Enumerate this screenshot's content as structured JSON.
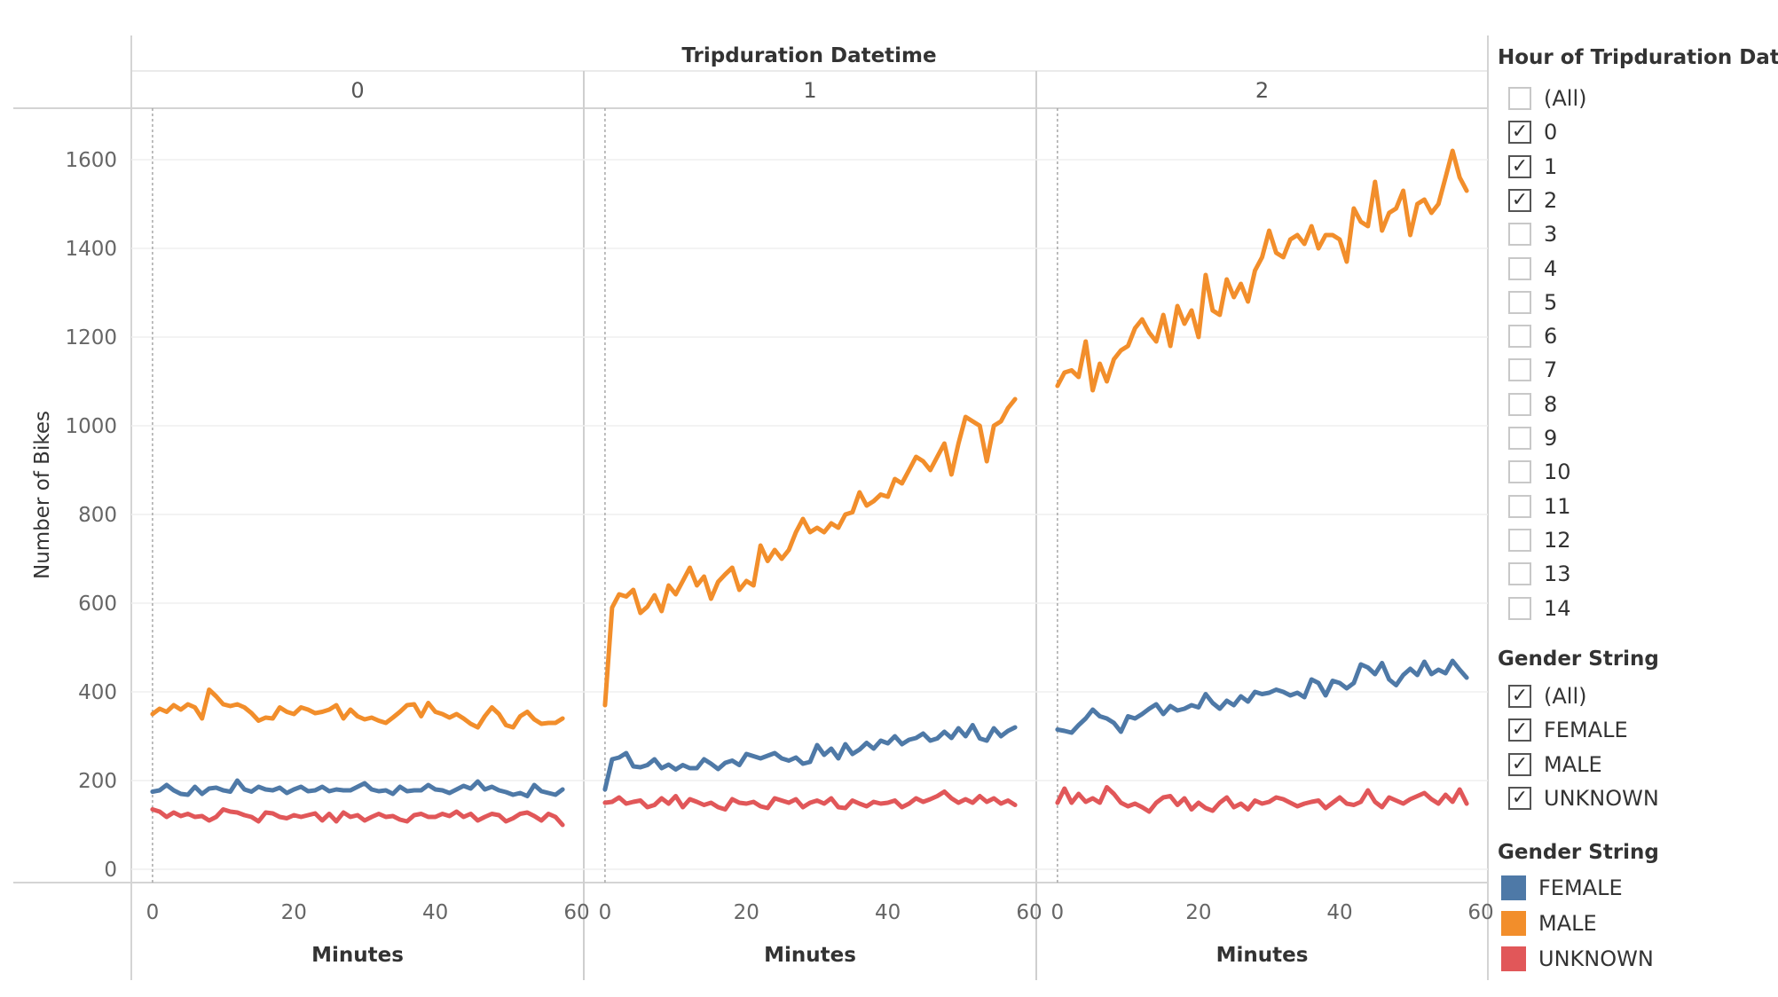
{
  "chart_data": {
    "type": "line",
    "title": "Tripduration Datetime",
    "xlabel": "Minutes",
    "ylabel": "Number of Bikes",
    "ylim": [
      0,
      1700
    ],
    "yticks": [
      0,
      200,
      400,
      600,
      800,
      1000,
      1200,
      1400,
      1600
    ],
    "xlim": [
      -3,
      61
    ],
    "xticks": [
      0,
      20,
      40,
      60
    ],
    "panels": [
      {
        "header": "0",
        "series": [
          {
            "name": "FEMALE",
            "color": "#4e79a7",
            "values": [
              175,
              178,
              190,
              178,
              170,
              168,
              186,
              170,
              182,
              184,
              178,
              175,
              200,
              180,
              175,
              186,
              180,
              178,
              184,
              172,
              180,
              186,
              176,
              178,
              186,
              176,
              180,
              178,
              178,
              186,
              194,
              180,
              176,
              178,
              170,
              186,
              176,
              178,
              178,
              190,
              180,
              178,
              172,
              180,
              188,
              182,
              198,
              180,
              186,
              178,
              174,
              168,
              172,
              165,
              190,
              176,
              172,
              168,
              180
            ]
          },
          {
            "name": "MALE",
            "color": "#f28e2b",
            "values": [
              350,
              362,
              355,
              370,
              360,
              372,
              365,
              340,
              405,
              390,
              372,
              368,
              372,
              365,
              352,
              335,
              342,
              340,
              365,
              355,
              350,
              365,
              360,
              352,
              355,
              360,
              370,
              340,
              360,
              345,
              338,
              342,
              335,
              330,
              342,
              355,
              370,
              372,
              345,
              375,
              355,
              350,
              342,
              350,
              340,
              328,
              320,
              345,
              365,
              350,
              325,
              320,
              345,
              355,
              338,
              328,
              330,
              330,
              340
            ]
          },
          {
            "name": "UNKNOWN",
            "color": "#e15759",
            "values": [
              135,
              130,
              118,
              128,
              120,
              125,
              118,
              120,
              110,
              118,
              135,
              130,
              128,
              122,
              118,
              108,
              128,
              126,
              118,
              115,
              122,
              118,
              122,
              126,
              110,
              125,
              108,
              128,
              118,
              122,
              110,
              118,
              125,
              118,
              120,
              112,
              108,
              122,
              125,
              118,
              118,
              125,
              120,
              130,
              118,
              125,
              110,
              118,
              125,
              122,
              108,
              115,
              125,
              128,
              120,
              110,
              125,
              118,
              100
            ]
          }
        ]
      },
      {
        "header": "1",
        "series": [
          {
            "name": "FEMALE",
            "color": "#4e79a7",
            "values": [
              180,
              248,
              252,
              262,
              232,
              230,
              235,
              248,
              228,
              236,
              225,
              235,
              228,
              228,
              248,
              238,
              226,
              240,
              245,
              235,
              260,
              255,
              250,
              256,
              262,
              250,
              245,
              252,
              238,
              242,
              280,
              258,
              272,
              250,
              282,
              260,
              270,
              285,
              272,
              290,
              284,
              300,
              282,
              292,
              296,
              306,
              290,
              295,
              310,
              296,
              318,
              300,
              325,
              295,
              290,
              318,
              300,
              312,
              320
            ]
          },
          {
            "name": "MALE",
            "color": "#f28e2b",
            "values": [
              370,
              590,
              620,
              615,
              630,
              578,
              592,
              618,
              582,
              640,
              620,
              650,
              680,
              640,
              660,
              610,
              648,
              665,
              680,
              630,
              650,
              640,
              730,
              695,
              720,
              700,
              720,
              760,
              790,
              760,
              770,
              760,
              780,
              770,
              800,
              805,
              850,
              820,
              830,
              845,
              840,
              880,
              870,
              900,
              930,
              920,
              900,
              930,
              960,
              890,
              960,
              1020,
              1010,
              1000,
              920,
              1000,
              1010,
              1040,
              1060
            ]
          },
          {
            "name": "UNKNOWN",
            "color": "#e15759",
            "values": [
              150,
              152,
              162,
              148,
              152,
              155,
              140,
              145,
              160,
              148,
              165,
              140,
              158,
              152,
              145,
              150,
              140,
              135,
              158,
              150,
              148,
              152,
              142,
              138,
              160,
              155,
              150,
              158,
              140,
              150,
              155,
              148,
              160,
              140,
              138,
              155,
              148,
              142,
              152,
              148,
              150,
              155,
              140,
              148,
              160,
              152,
              158,
              165,
              175,
              160,
              150,
              158,
              150,
              165,
              152,
              160,
              148,
              155,
              145
            ]
          }
        ]
      },
      {
        "header": "2",
        "series": [
          {
            "name": "FEMALE",
            "color": "#4e79a7",
            "values": [
              315,
              312,
              308,
              325,
              340,
              360,
              345,
              340,
              330,
              310,
              345,
              340,
              350,
              362,
              372,
              350,
              368,
              358,
              362,
              370,
              365,
              395,
              375,
              362,
              380,
              370,
              390,
              378,
              400,
              395,
              398,
              405,
              400,
              392,
              398,
              388,
              428,
              420,
              392,
              425,
              420,
              408,
              420,
              462,
              455,
              440,
              465,
              428,
              415,
              438,
              452,
              438,
              468,
              440,
              450,
              442,
              470,
              450,
              432
            ]
          },
          {
            "name": "MALE",
            "color": "#f28e2b",
            "values": [
              1090,
              1120,
              1125,
              1110,
              1190,
              1080,
              1140,
              1100,
              1150,
              1170,
              1180,
              1220,
              1240,
              1210,
              1190,
              1250,
              1180,
              1270,
              1230,
              1260,
              1200,
              1340,
              1260,
              1250,
              1330,
              1290,
              1320,
              1280,
              1350,
              1380,
              1440,
              1390,
              1380,
              1420,
              1430,
              1410,
              1450,
              1400,
              1430,
              1430,
              1420,
              1370,
              1490,
              1460,
              1450,
              1550,
              1440,
              1480,
              1490,
              1530,
              1430,
              1500,
              1510,
              1480,
              1500,
              1560,
              1620,
              1560,
              1530
            ]
          },
          {
            "name": "UNKNOWN",
            "color": "#e15759",
            "values": [
              150,
              182,
              150,
              170,
              152,
              160,
              150,
              185,
              170,
              150,
              142,
              148,
              140,
              130,
              150,
              162,
              165,
              145,
              160,
              135,
              150,
              138,
              132,
              150,
              162,
              140,
              148,
              135,
              155,
              148,
              152,
              162,
              158,
              150,
              142,
              148,
              152,
              155,
              138,
              150,
              162,
              148,
              145,
              152,
              178,
              152,
              140,
              162,
              155,
              148,
              158,
              165,
              172,
              158,
              148,
              168,
              152,
              180,
              148
            ]
          }
        ]
      }
    ],
    "legend_title": "Gender String",
    "legend": [
      {
        "name": "FEMALE",
        "color": "#4e79a7"
      },
      {
        "name": "MALE",
        "color": "#f28e2b"
      },
      {
        "name": "UNKNOWN",
        "color": "#e15759"
      }
    ]
  },
  "filters": {
    "hour": {
      "title": "Hour of Tripduration Dat..",
      "items": [
        {
          "label": "(All)",
          "checked": false
        },
        {
          "label": "0",
          "checked": true
        },
        {
          "label": "1",
          "checked": true
        },
        {
          "label": "2",
          "checked": true
        },
        {
          "label": "3",
          "checked": false
        },
        {
          "label": "4",
          "checked": false
        },
        {
          "label": "5",
          "checked": false
        },
        {
          "label": "6",
          "checked": false
        },
        {
          "label": "7",
          "checked": false
        },
        {
          "label": "8",
          "checked": false
        },
        {
          "label": "9",
          "checked": false
        },
        {
          "label": "10",
          "checked": false
        },
        {
          "label": "11",
          "checked": false
        },
        {
          "label": "12",
          "checked": false
        },
        {
          "label": "13",
          "checked": false
        },
        {
          "label": "14",
          "checked": false
        }
      ]
    },
    "gender": {
      "title": "Gender String",
      "items": [
        {
          "label": "(All)",
          "checked": true
        },
        {
          "label": "FEMALE",
          "checked": true
        },
        {
          "label": "MALE",
          "checked": true
        },
        {
          "label": "UNKNOWN",
          "checked": true
        }
      ]
    }
  }
}
